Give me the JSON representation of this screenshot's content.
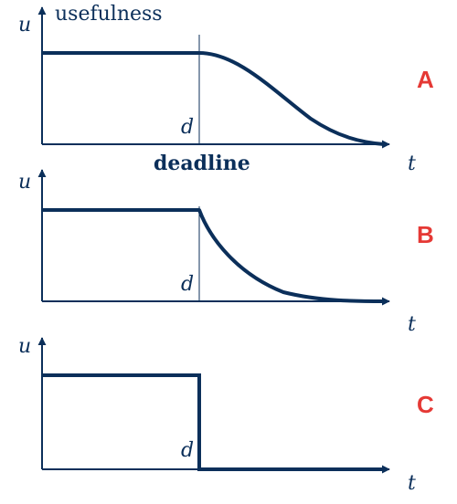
{
  "colors": {
    "curve": "#0b2f5a",
    "axis": "#0b2f5a",
    "deadline_line": "#0b2f5a",
    "panel_label": "#e53935",
    "text": "#0b2f5a"
  },
  "labels": {
    "usefulness": "usefulness",
    "deadline": "deadline"
  },
  "panels": [
    {
      "id": "A",
      "label": "A",
      "y_axis": "u",
      "x_axis": "t",
      "deadline_mark": "d",
      "curve": "s-shaped decay"
    },
    {
      "id": "B",
      "label": "B",
      "y_axis": "u",
      "x_axis": "t",
      "deadline_mark": "d",
      "curve": "exponential decay"
    },
    {
      "id": "C",
      "label": "C",
      "y_axis": "u",
      "x_axis": "t",
      "deadline_mark": "d",
      "curve": "step drop"
    }
  ]
}
